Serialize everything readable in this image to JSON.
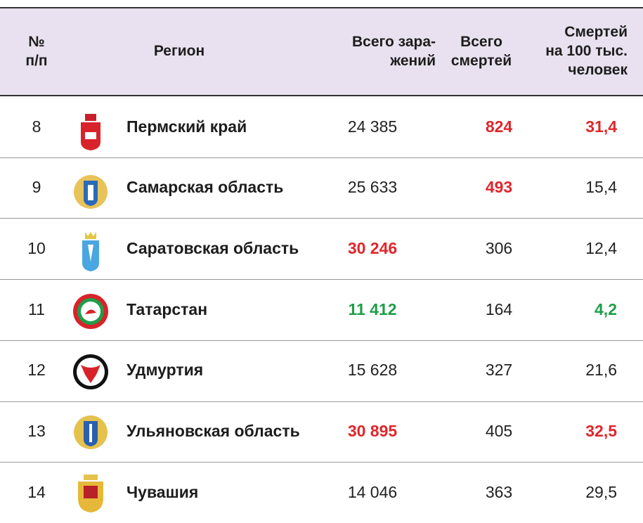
{
  "table": {
    "header": [
      "№\nп/п",
      "Регион",
      "Всего зара-\nжений",
      "Всего\nсмертей",
      "Смертей\nна 100 тыс.\nчеловек"
    ],
    "rows": [
      {
        "n": "8",
        "region": "Пермский край",
        "infections": "24 385",
        "deaths": "824",
        "per100k": "31,4",
        "highlight": {
          "deaths": "#e0262b",
          "per100k": "#e0262b"
        }
      },
      {
        "n": "9",
        "region": "Самарская область",
        "infections": "25 633",
        "deaths": "493",
        "per100k": "15,4",
        "highlight": {
          "deaths": "#e0262b"
        }
      },
      {
        "n": "10",
        "region": "Саратовская область",
        "infections": "30 246",
        "deaths": "306",
        "per100k": "12,4",
        "highlight": {
          "infections": "#e0262b"
        }
      },
      {
        "n": "11",
        "region": "Татарстан",
        "infections": "11 412",
        "deaths": "164",
        "per100k": "4,2",
        "highlight": {
          "infections": "#1e9e4a",
          "per100k": "#1e9e4a"
        }
      },
      {
        "n": "12",
        "region": "Удмуртия",
        "infections": "15 628",
        "deaths": "327",
        "per100k": "21,6",
        "highlight": {}
      },
      {
        "n": "13",
        "region": "Ульяновская область",
        "infections": "30 895",
        "deaths": "405",
        "per100k": "32,5",
        "highlight": {
          "infections": "#e0262b",
          "per100k": "#e0262b"
        }
      },
      {
        "n": "14",
        "region": "Чувашия",
        "infections": "14 046",
        "deaths": "363",
        "per100k": "29,5",
        "highlight": {}
      }
    ]
  }
}
